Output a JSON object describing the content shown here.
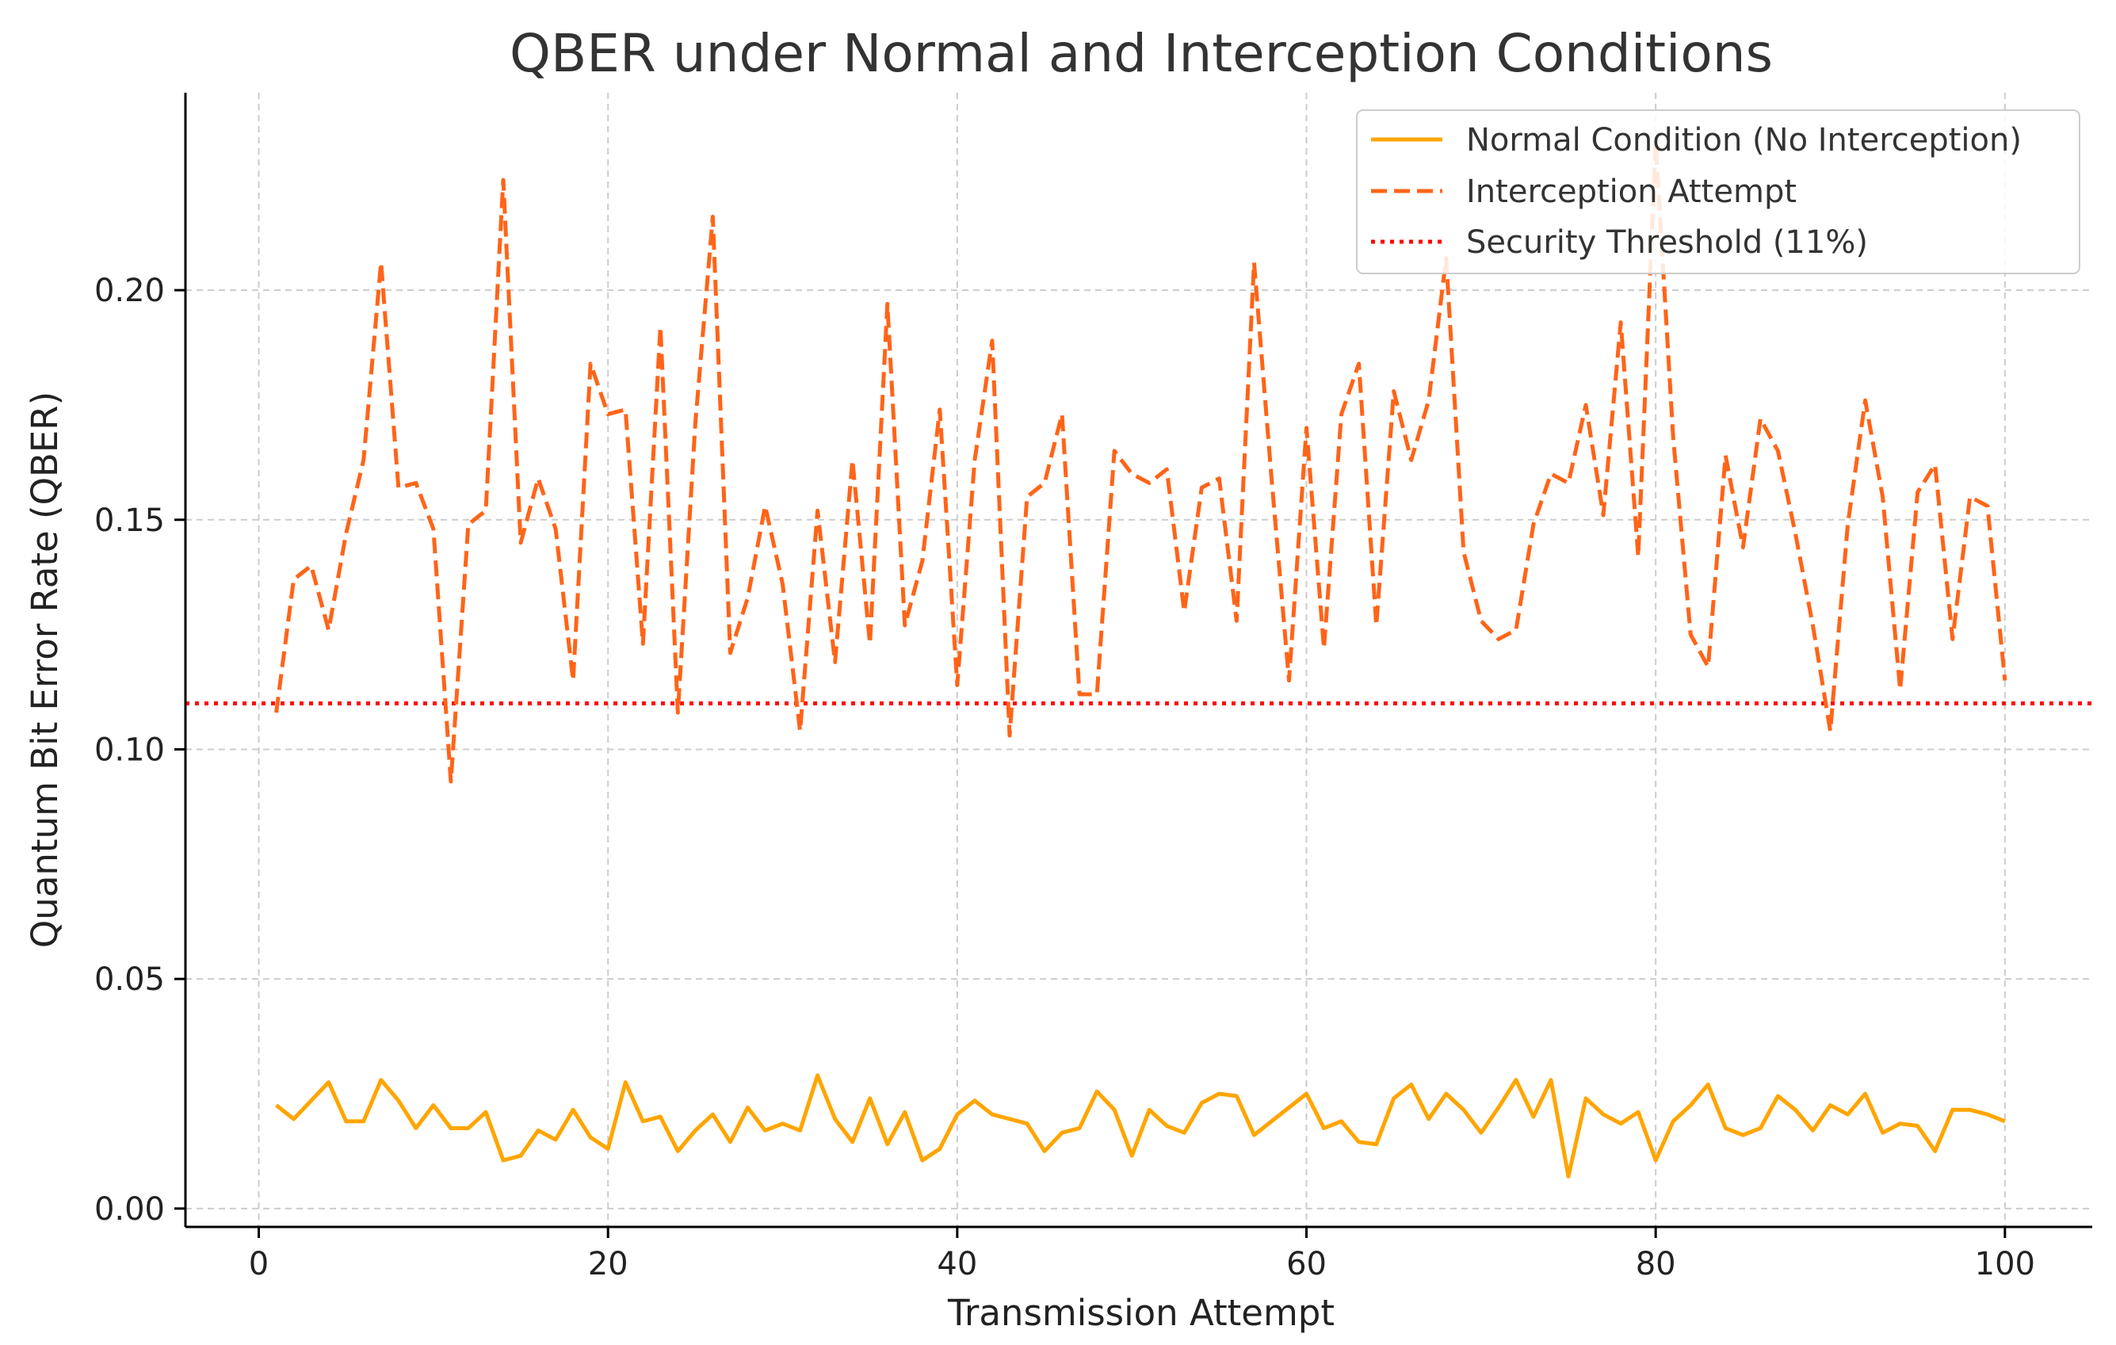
{
  "chart_data": {
    "type": "line",
    "title": "QBER under Normal and Interception Conditions",
    "xlabel": "Transmission Attempt",
    "ylabel": "Quantum Bit Error Rate (QBER)",
    "xlim": [
      -4.2,
      105
    ],
    "ylim": [
      -0.004,
      0.243
    ],
    "x_ticks": [
      0,
      20,
      40,
      60,
      80,
      100
    ],
    "x_tick_labels": [
      "0",
      "20",
      "40",
      "60",
      "80",
      "100"
    ],
    "y_ticks": [
      0.0,
      0.05,
      0.1,
      0.15,
      0.2
    ],
    "y_tick_labels": [
      "0.00",
      "0.05",
      "0.10",
      "0.15",
      "0.20"
    ],
    "grid": true,
    "legend_position": "top-right",
    "colors": {
      "normal": "#FFA500",
      "interception": "#FF6418",
      "threshold": "#FF0000",
      "grid": "#cccccc",
      "axis": "#000000"
    },
    "threshold": {
      "name": "Security Threshold (11%)",
      "value": 0.11
    },
    "series": [
      {
        "name": "Normal Condition (No Interception)",
        "style": "solid",
        "values": [
          0.0225,
          0.0195,
          0.0235,
          0.0275,
          0.019,
          0.019,
          0.028,
          0.0235,
          0.0175,
          0.0225,
          0.0175,
          0.0175,
          0.021,
          0.0105,
          0.0115,
          0.017,
          0.015,
          0.0215,
          0.0155,
          0.013,
          0.0275,
          0.019,
          0.02,
          0.0125,
          0.017,
          0.0205,
          0.0145,
          0.022,
          0.017,
          0.0185,
          0.017,
          0.029,
          0.0195,
          0.0145,
          0.024,
          0.014,
          0.021,
          0.0105,
          0.013,
          0.0205,
          0.0235,
          0.0205,
          0.0195,
          0.0185,
          0.0125,
          0.0165,
          0.0175,
          0.0255,
          0.0215,
          0.0115,
          0.0215,
          0.018,
          0.0165,
          0.023,
          0.025,
          0.0245,
          0.016,
          0.019,
          0.022,
          0.025,
          0.0175,
          0.019,
          0.0145,
          0.014,
          0.024,
          0.027,
          0.0195,
          0.025,
          0.0215,
          0.0165,
          0.022,
          0.028,
          0.02,
          0.028,
          0.007,
          0.024,
          0.0205,
          0.0185,
          0.021,
          0.0105,
          0.019,
          0.0225,
          0.027,
          0.0175,
          0.016,
          0.0175,
          0.0245,
          0.0215,
          0.017,
          0.0225,
          0.0205,
          0.025,
          0.0165,
          0.0185,
          0.018,
          0.0125,
          0.0215,
          0.0215,
          0.0205,
          0.019
        ]
      },
      {
        "name": "Interception Attempt",
        "style": "dashed",
        "values": [
          0.108,
          0.137,
          0.14,
          0.126,
          0.147,
          0.163,
          0.206,
          0.157,
          0.158,
          0.148,
          0.093,
          0.149,
          0.152,
          0.224,
          0.145,
          0.159,
          0.148,
          0.115,
          0.184,
          0.173,
          0.174,
          0.123,
          0.192,
          0.108,
          0.171,
          0.216,
          0.121,
          0.133,
          0.153,
          0.136,
          0.104,
          0.152,
          0.119,
          0.163,
          0.123,
          0.197,
          0.127,
          0.141,
          0.174,
          0.114,
          0.163,
          0.189,
          0.103,
          0.155,
          0.158,
          0.173,
          0.112,
          0.112,
          0.165,
          0.16,
          0.158,
          0.161,
          0.13,
          0.157,
          0.159,
          0.128,
          0.206,
          0.159,
          0.115,
          0.17,
          0.122,
          0.173,
          0.184,
          0.127,
          0.178,
          0.163,
          0.176,
          0.207,
          0.143,
          0.128,
          0.124,
          0.126,
          0.149,
          0.16,
          0.158,
          0.175,
          0.151,
          0.193,
          0.142,
          0.232,
          0.168,
          0.125,
          0.118,
          0.164,
          0.144,
          0.172,
          0.165,
          0.147,
          0.127,
          0.104,
          0.149,
          0.176,
          0.155,
          0.113,
          0.156,
          0.162,
          0.124,
          0.155,
          0.153,
          0.115
        ]
      }
    ]
  }
}
